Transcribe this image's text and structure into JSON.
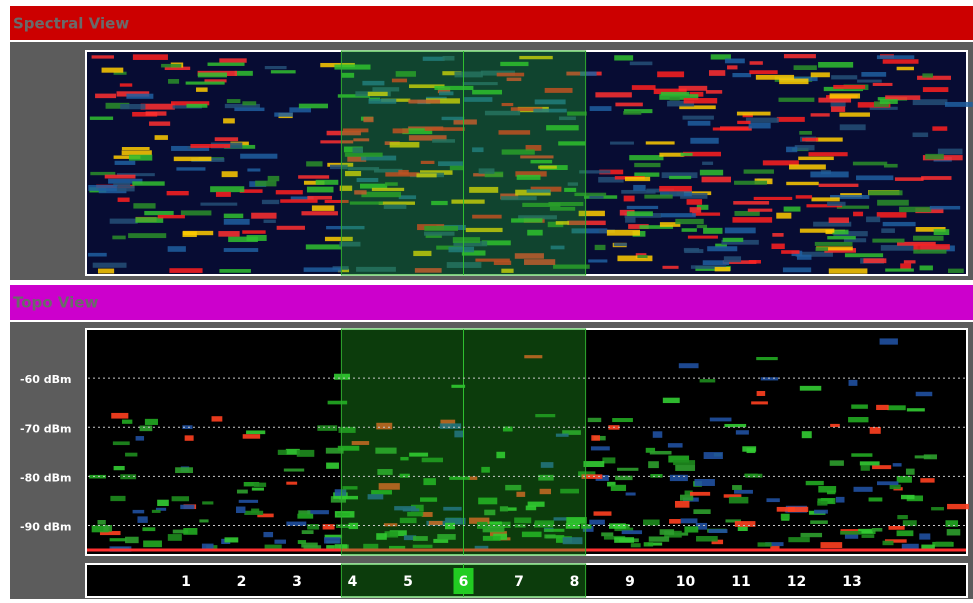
{
  "spectral": {
    "title": "Spectral View"
  },
  "topo": {
    "title": "Topo View",
    "ylim": [
      -50,
      -96
    ],
    "yticks": [
      {
        "value": -60,
        "label": "-60 dBm"
      },
      {
        "value": -70,
        "label": "-70 dBm"
      },
      {
        "value": -80,
        "label": "-80 dBm"
      },
      {
        "value": -90,
        "label": "-90 dBm"
      }
    ]
  },
  "channels": [
    1,
    2,
    3,
    4,
    5,
    6,
    7,
    8,
    9,
    10,
    11,
    12,
    13
  ],
  "selected_channel": 6
}
